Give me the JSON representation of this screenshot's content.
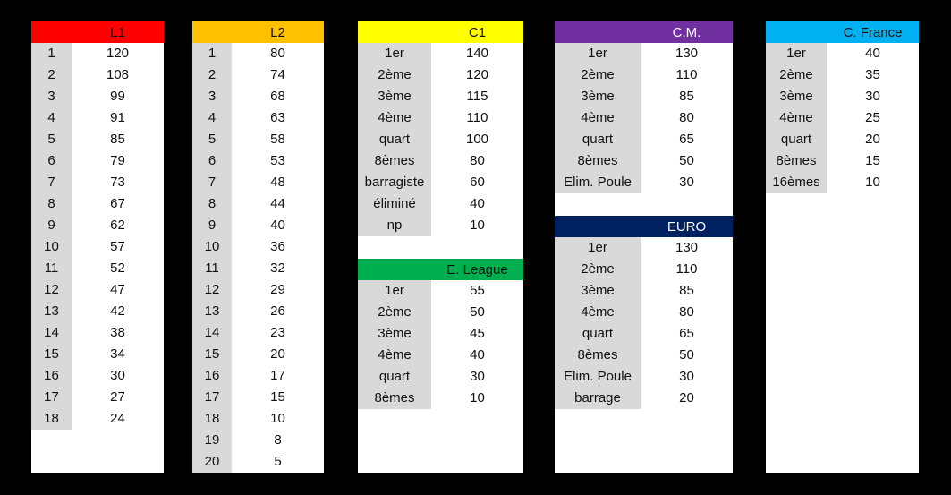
{
  "tables": {
    "l1": {
      "title": "L1",
      "color": "#ff0000",
      "text_color": "#111111",
      "rows": [
        [
          "1",
          "120"
        ],
        [
          "2",
          "108"
        ],
        [
          "3",
          "99"
        ],
        [
          "4",
          "91"
        ],
        [
          "5",
          "85"
        ],
        [
          "6",
          "79"
        ],
        [
          "7",
          "73"
        ],
        [
          "8",
          "67"
        ],
        [
          "9",
          "62"
        ],
        [
          "10",
          "57"
        ],
        [
          "11",
          "52"
        ],
        [
          "12",
          "47"
        ],
        [
          "13",
          "42"
        ],
        [
          "14",
          "38"
        ],
        [
          "15",
          "34"
        ],
        [
          "16",
          "30"
        ],
        [
          "17",
          "27"
        ],
        [
          "18",
          "24"
        ]
      ]
    },
    "l2": {
      "title": "L2",
      "color": "#ffc000",
      "text_color": "#111111",
      "rows": [
        [
          "1",
          "80"
        ],
        [
          "2",
          "74"
        ],
        [
          "3",
          "68"
        ],
        [
          "4",
          "63"
        ],
        [
          "5",
          "58"
        ],
        [
          "6",
          "53"
        ],
        [
          "7",
          "48"
        ],
        [
          "8",
          "44"
        ],
        [
          "9",
          "40"
        ],
        [
          "10",
          "36"
        ],
        [
          "11",
          "32"
        ],
        [
          "12",
          "29"
        ],
        [
          "13",
          "26"
        ],
        [
          "14",
          "23"
        ],
        [
          "15",
          "20"
        ],
        [
          "16",
          "17"
        ],
        [
          "17",
          "15"
        ],
        [
          "18",
          "10"
        ],
        [
          "19",
          "8"
        ],
        [
          "20",
          "5"
        ]
      ]
    },
    "c1": {
      "title": "C1",
      "color": "#ffff00",
      "text_color": "#111111",
      "rows": [
        [
          "1er",
          "140"
        ],
        [
          "2ème",
          "120"
        ],
        [
          "3ème",
          "115"
        ],
        [
          "4ème",
          "110"
        ],
        [
          "quart",
          "100"
        ],
        [
          "8èmes",
          "80"
        ],
        [
          "barragiste",
          "60"
        ],
        [
          "éliminé",
          "40"
        ],
        [
          "np",
          "10"
        ]
      ]
    },
    "el": {
      "title": "E. League",
      "color": "#00b050",
      "text_color": "#111111",
      "rows": [
        [
          "1er",
          "55"
        ],
        [
          "2ème",
          "50"
        ],
        [
          "3ème",
          "45"
        ],
        [
          "4ème",
          "40"
        ],
        [
          "quart",
          "30"
        ],
        [
          "8èmes",
          "10"
        ]
      ]
    },
    "cm": {
      "title": "C.M.",
      "color": "#7030a0",
      "text_color": "#ffffff",
      "rows": [
        [
          "1er",
          "130"
        ],
        [
          "2ème",
          "110"
        ],
        [
          "3ème",
          "85"
        ],
        [
          "4ème",
          "80"
        ],
        [
          "quart",
          "65"
        ],
        [
          "8èmes",
          "50"
        ],
        [
          "Elim. Poule",
          "30"
        ]
      ]
    },
    "euro": {
      "title": "EURO",
      "color": "#002060",
      "text_color": "#ffffff",
      "rows": [
        [
          "1er",
          "130"
        ],
        [
          "2ème",
          "110"
        ],
        [
          "3ème",
          "85"
        ],
        [
          "4ème",
          "80"
        ],
        [
          "quart",
          "65"
        ],
        [
          "8èmes",
          "50"
        ],
        [
          "Elim. Poule",
          "30"
        ],
        [
          "barrage",
          "20"
        ]
      ]
    },
    "cf": {
      "title": "C. France",
      "color": "#00b0f0",
      "text_color": "#111111",
      "rows": [
        [
          "1er",
          "40"
        ],
        [
          "2ème",
          "35"
        ],
        [
          "3ème",
          "30"
        ],
        [
          "4ème",
          "25"
        ],
        [
          "quart",
          "20"
        ],
        [
          "8èmes",
          "15"
        ],
        [
          "16èmes",
          "10"
        ]
      ]
    }
  }
}
